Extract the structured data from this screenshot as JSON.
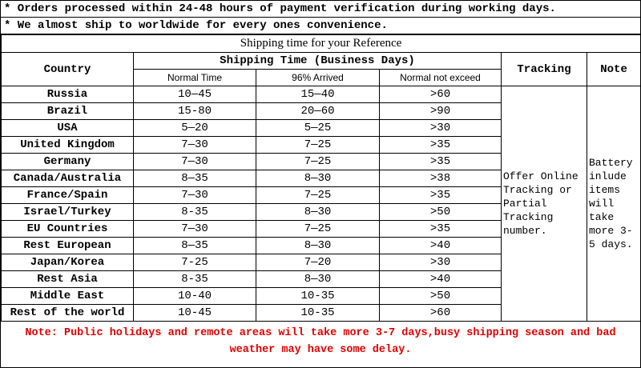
{
  "notes": [
    "* Orders processed within 24-48 hours of payment verification during working days.",
    "* We almost ship to worldwide for every ones convenience."
  ],
  "table": {
    "title": "Shipping time for your Reference",
    "headers": {
      "country": "Country",
      "shipping_time": "Shipping Time (Business Days)",
      "normal_time": "Normal Time",
      "arrived": "96% Arrived",
      "not_exceed": "Normal not exceed",
      "tracking": "Tracking",
      "note": "Note"
    },
    "rows": [
      [
        "Russia",
        "10—45",
        "15—40",
        ">60"
      ],
      [
        "Brazil",
        "15-80",
        "20—60",
        ">90"
      ],
      [
        "USA",
        "5—20",
        "5—25",
        ">30"
      ],
      [
        "United Kingdom",
        "7—30",
        "7—25",
        ">35"
      ],
      [
        "Germany",
        "7—30",
        "7—25",
        ">35"
      ],
      [
        "Canada/Australia",
        "8—35",
        "8—30",
        ">38"
      ],
      [
        "France/Spain",
        "7—30",
        "7—25",
        ">35"
      ],
      [
        "Israel/Turkey",
        "8-35",
        "8—30",
        ">50"
      ],
      [
        "EU Countries",
        "7—30",
        "7—25",
        ">35"
      ],
      [
        "Rest European",
        "8—35",
        "8—30",
        ">40"
      ],
      [
        "Japan/Korea",
        "7-25",
        "7—20",
        ">30"
      ],
      [
        "Rest Asia",
        "8-35",
        "8—30",
        ">40"
      ],
      [
        "Middle East",
        "10-40",
        "10-35",
        ">50"
      ],
      [
        "Rest of the world",
        "10-45",
        "10-35",
        ">60"
      ]
    ],
    "tracking_text": "Offer Online Tracking or Partial Tracking number.",
    "note_text": "Battery inlude items will take more 3-5 days."
  },
  "footer": "Note: Public holidays and remote areas will take more 3-7 days,busy shipping season and bad weather may have some delay."
}
